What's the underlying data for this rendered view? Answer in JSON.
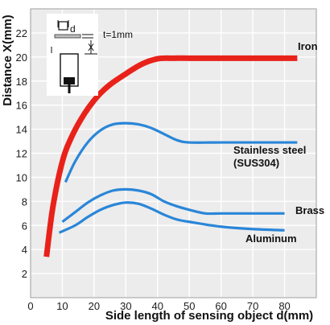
{
  "chart_data": {
    "type": "line",
    "title": "",
    "xlabel": "Side length of sensing object d(mm)",
    "ylabel": "Distance X(mm)",
    "xlim": [
      0,
      90
    ],
    "ylim": [
      0,
      24
    ],
    "xticks": [
      0,
      10,
      20,
      30,
      40,
      50,
      60,
      70,
      80
    ],
    "yticks": [
      2,
      4,
      6,
      8,
      10,
      12,
      14,
      16,
      18,
      20,
      22
    ],
    "grid": true,
    "legend": "labels next to curves",
    "series": [
      {
        "name": "Iron",
        "color": "#e8221a",
        "x": [
          5,
          7,
          10,
          13,
          17,
          21,
          25,
          30,
          35,
          40,
          45,
          50,
          60,
          70,
          84
        ],
        "y": [
          3.4,
          7.5,
          11.3,
          13.4,
          15.3,
          16.7,
          17.7,
          18.6,
          19.4,
          19.85,
          19.9,
          19.9,
          19.9,
          19.9,
          19.9
        ]
      },
      {
        "name": "Stainless steel (SUS304)",
        "color": "#2a86d8",
        "x": [
          11,
          14,
          18,
          22,
          26,
          30,
          34,
          38,
          42,
          46,
          50,
          60,
          70,
          84
        ],
        "y": [
          9.6,
          11.3,
          12.9,
          13.9,
          14.4,
          14.5,
          14.4,
          14.1,
          13.6,
          13.1,
          12.9,
          12.9,
          12.9,
          12.9
        ]
      },
      {
        "name": "Brass",
        "color": "#2a86d8",
        "x": [
          10,
          14,
          18,
          22,
          26,
          30,
          34,
          38,
          42,
          46,
          50,
          55,
          60,
          70,
          80
        ],
        "y": [
          6.3,
          7.1,
          7.9,
          8.5,
          8.9,
          9.0,
          8.9,
          8.6,
          8.0,
          7.6,
          7.3,
          7.0,
          7.0,
          7.0,
          7.0
        ]
      },
      {
        "name": "Aluminum",
        "color": "#2a86d8",
        "x": [
          9,
          14,
          18,
          22,
          26,
          30,
          34,
          38,
          42,
          46,
          50,
          60,
          70,
          80
        ],
        "y": [
          5.4,
          6.0,
          6.7,
          7.3,
          7.7,
          7.9,
          7.8,
          7.4,
          6.9,
          6.5,
          6.3,
          5.9,
          5.7,
          5.6
        ]
      }
    ],
    "series_labels": {
      "iron": "Iron",
      "stainless_line1": "Stainless steel",
      "stainless_line2": "(SUS304)",
      "brass": "Brass",
      "aluminum": "Aluminum"
    }
  },
  "diagram": {
    "d_label": "d",
    "t_label": "t=1mm",
    "x_label": "X"
  }
}
